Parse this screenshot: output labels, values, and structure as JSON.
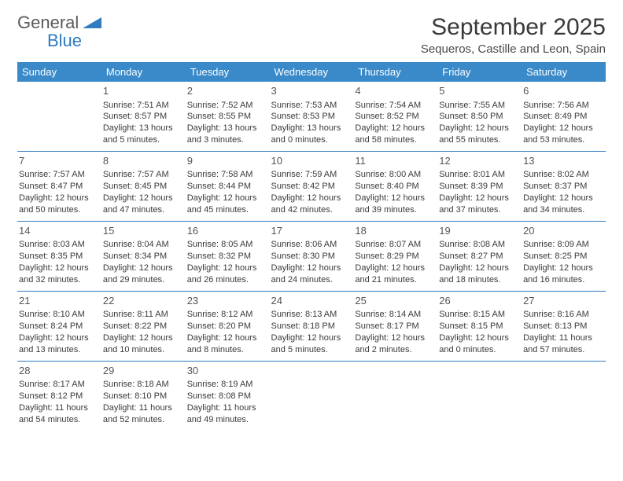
{
  "logo": {
    "word1": "General",
    "word2": "Blue"
  },
  "title": "September 2025",
  "location": "Sequeros, Castille and Leon, Spain",
  "colors": {
    "header_bg": "#3a8ac9",
    "header_text": "#ffffff",
    "row_divider": "#2e7bbf",
    "body_text": "#3a3a3a",
    "logo_gray": "#5a5a5a",
    "logo_blue": "#2e7bbf",
    "background": "#ffffff"
  },
  "typography": {
    "title_fontsize": 30,
    "location_fontsize": 15,
    "header_fontsize": 13,
    "cell_fontsize": 11,
    "daynum_fontsize": 13
  },
  "calendar": {
    "type": "table",
    "columns": [
      "Sunday",
      "Monday",
      "Tuesday",
      "Wednesday",
      "Thursday",
      "Friday",
      "Saturday"
    ],
    "weeks": [
      [
        null,
        {
          "n": "1",
          "sr": "7:51 AM",
          "ss": "8:57 PM",
          "dl": "13 hours and 5 minutes."
        },
        {
          "n": "2",
          "sr": "7:52 AM",
          "ss": "8:55 PM",
          "dl": "13 hours and 3 minutes."
        },
        {
          "n": "3",
          "sr": "7:53 AM",
          "ss": "8:53 PM",
          "dl": "13 hours and 0 minutes."
        },
        {
          "n": "4",
          "sr": "7:54 AM",
          "ss": "8:52 PM",
          "dl": "12 hours and 58 minutes."
        },
        {
          "n": "5",
          "sr": "7:55 AM",
          "ss": "8:50 PM",
          "dl": "12 hours and 55 minutes."
        },
        {
          "n": "6",
          "sr": "7:56 AM",
          "ss": "8:49 PM",
          "dl": "12 hours and 53 minutes."
        }
      ],
      [
        {
          "n": "7",
          "sr": "7:57 AM",
          "ss": "8:47 PM",
          "dl": "12 hours and 50 minutes."
        },
        {
          "n": "8",
          "sr": "7:57 AM",
          "ss": "8:45 PM",
          "dl": "12 hours and 47 minutes."
        },
        {
          "n": "9",
          "sr": "7:58 AM",
          "ss": "8:44 PM",
          "dl": "12 hours and 45 minutes."
        },
        {
          "n": "10",
          "sr": "7:59 AM",
          "ss": "8:42 PM",
          "dl": "12 hours and 42 minutes."
        },
        {
          "n": "11",
          "sr": "8:00 AM",
          "ss": "8:40 PM",
          "dl": "12 hours and 39 minutes."
        },
        {
          "n": "12",
          "sr": "8:01 AM",
          "ss": "8:39 PM",
          "dl": "12 hours and 37 minutes."
        },
        {
          "n": "13",
          "sr": "8:02 AM",
          "ss": "8:37 PM",
          "dl": "12 hours and 34 minutes."
        }
      ],
      [
        {
          "n": "14",
          "sr": "8:03 AM",
          "ss": "8:35 PM",
          "dl": "12 hours and 32 minutes."
        },
        {
          "n": "15",
          "sr": "8:04 AM",
          "ss": "8:34 PM",
          "dl": "12 hours and 29 minutes."
        },
        {
          "n": "16",
          "sr": "8:05 AM",
          "ss": "8:32 PM",
          "dl": "12 hours and 26 minutes."
        },
        {
          "n": "17",
          "sr": "8:06 AM",
          "ss": "8:30 PM",
          "dl": "12 hours and 24 minutes."
        },
        {
          "n": "18",
          "sr": "8:07 AM",
          "ss": "8:29 PM",
          "dl": "12 hours and 21 minutes."
        },
        {
          "n": "19",
          "sr": "8:08 AM",
          "ss": "8:27 PM",
          "dl": "12 hours and 18 minutes."
        },
        {
          "n": "20",
          "sr": "8:09 AM",
          "ss": "8:25 PM",
          "dl": "12 hours and 16 minutes."
        }
      ],
      [
        {
          "n": "21",
          "sr": "8:10 AM",
          "ss": "8:24 PM",
          "dl": "12 hours and 13 minutes."
        },
        {
          "n": "22",
          "sr": "8:11 AM",
          "ss": "8:22 PM",
          "dl": "12 hours and 10 minutes."
        },
        {
          "n": "23",
          "sr": "8:12 AM",
          "ss": "8:20 PM",
          "dl": "12 hours and 8 minutes."
        },
        {
          "n": "24",
          "sr": "8:13 AM",
          "ss": "8:18 PM",
          "dl": "12 hours and 5 minutes."
        },
        {
          "n": "25",
          "sr": "8:14 AM",
          "ss": "8:17 PM",
          "dl": "12 hours and 2 minutes."
        },
        {
          "n": "26",
          "sr": "8:15 AM",
          "ss": "8:15 PM",
          "dl": "12 hours and 0 minutes."
        },
        {
          "n": "27",
          "sr": "8:16 AM",
          "ss": "8:13 PM",
          "dl": "11 hours and 57 minutes."
        }
      ],
      [
        {
          "n": "28",
          "sr": "8:17 AM",
          "ss": "8:12 PM",
          "dl": "11 hours and 54 minutes."
        },
        {
          "n": "29",
          "sr": "8:18 AM",
          "ss": "8:10 PM",
          "dl": "11 hours and 52 minutes."
        },
        {
          "n": "30",
          "sr": "8:19 AM",
          "ss": "8:08 PM",
          "dl": "11 hours and 49 minutes."
        },
        null,
        null,
        null,
        null
      ]
    ],
    "labels": {
      "sunrise": "Sunrise:",
      "sunset": "Sunset:",
      "daylight": "Daylight:"
    }
  }
}
